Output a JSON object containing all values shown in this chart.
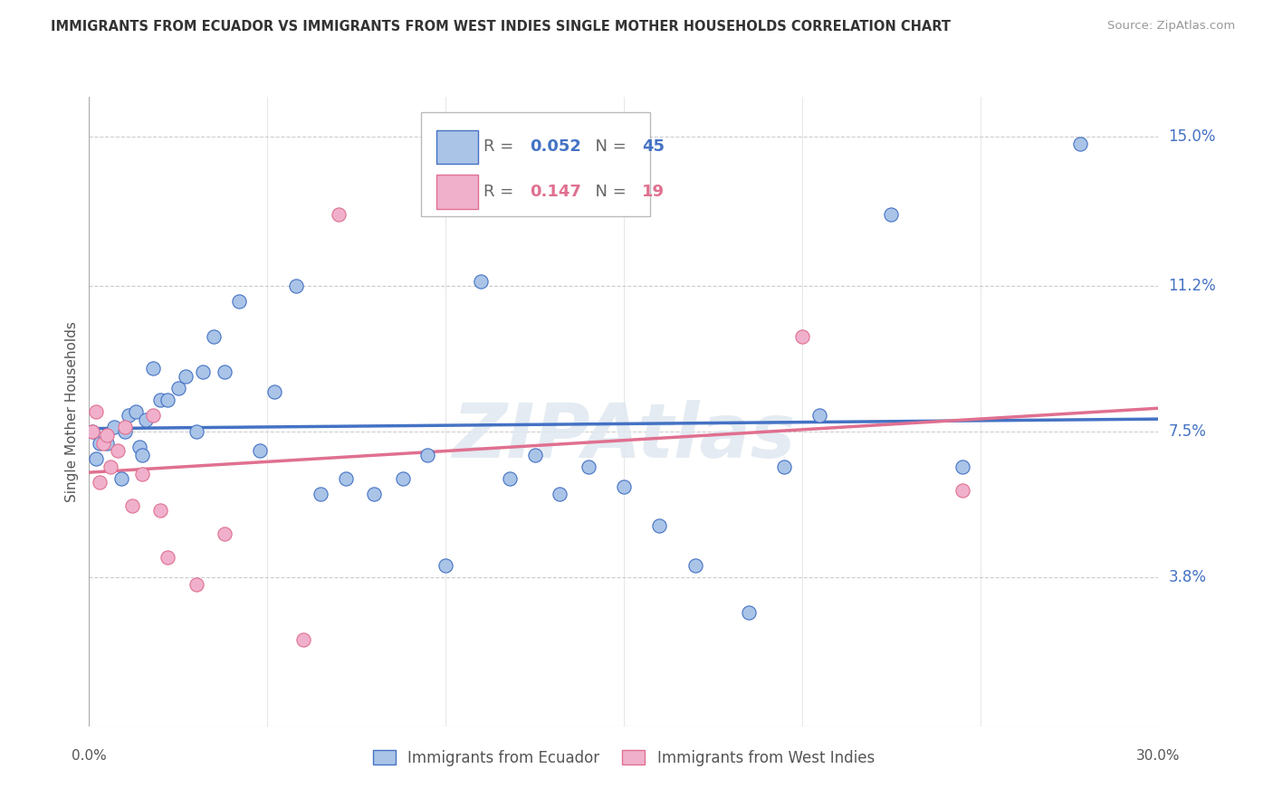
{
  "title": "IMMIGRANTS FROM ECUADOR VS IMMIGRANTS FROM WEST INDIES SINGLE MOTHER HOUSEHOLDS CORRELATION CHART",
  "source": "Source: ZipAtlas.com",
  "ylabel": "Single Mother Households",
  "legend_labels": [
    "Immigrants from Ecuador",
    "Immigrants from West Indies"
  ],
  "r_ecuador": 0.052,
  "n_ecuador": 45,
  "r_west_indies": 0.147,
  "n_west_indies": 19,
  "color_ecuador": "#aac4e8",
  "color_west_indies": "#f0b0cc",
  "line_color_ecuador": "#4472c4",
  "line_color_west_indies": "#e07090",
  "watermark": "ZIPAtlas",
  "xmin": 0.0,
  "xmax": 0.3,
  "ymin": 0.0,
  "ymax": 0.16,
  "right_yticks": [
    0.038,
    0.075,
    0.112,
    0.15
  ],
  "right_ytick_labels": [
    "3.8%",
    "7.5%",
    "11.2%",
    "15.0%"
  ],
  "ecuador_x": [
    0.001,
    0.002,
    0.003,
    0.005,
    0.007,
    0.009,
    0.01,
    0.011,
    0.013,
    0.014,
    0.015,
    0.016,
    0.018,
    0.02,
    0.022,
    0.025,
    0.027,
    0.03,
    0.032,
    0.035,
    0.038,
    0.042,
    0.048,
    0.052,
    0.058,
    0.065,
    0.072,
    0.08,
    0.088,
    0.095,
    0.1,
    0.11,
    0.118,
    0.125,
    0.132,
    0.14,
    0.15,
    0.16,
    0.17,
    0.185,
    0.195,
    0.205,
    0.225,
    0.245,
    0.278
  ],
  "ecuador_y": [
    0.075,
    0.068,
    0.072,
    0.072,
    0.076,
    0.063,
    0.075,
    0.079,
    0.08,
    0.071,
    0.069,
    0.078,
    0.091,
    0.083,
    0.083,
    0.086,
    0.089,
    0.075,
    0.09,
    0.099,
    0.09,
    0.108,
    0.07,
    0.085,
    0.112,
    0.059,
    0.063,
    0.059,
    0.063,
    0.069,
    0.041,
    0.113,
    0.063,
    0.069,
    0.059,
    0.066,
    0.061,
    0.051,
    0.041,
    0.029,
    0.066,
    0.079,
    0.13,
    0.066,
    0.148
  ],
  "west_indies_x": [
    0.001,
    0.002,
    0.003,
    0.004,
    0.005,
    0.006,
    0.008,
    0.01,
    0.012,
    0.015,
    0.018,
    0.02,
    0.022,
    0.03,
    0.038,
    0.06,
    0.07,
    0.2,
    0.245
  ],
  "west_indies_y": [
    0.075,
    0.08,
    0.062,
    0.072,
    0.074,
    0.066,
    0.07,
    0.076,
    0.056,
    0.064,
    0.079,
    0.055,
    0.043,
    0.036,
    0.049,
    0.022,
    0.13,
    0.099,
    0.06
  ]
}
